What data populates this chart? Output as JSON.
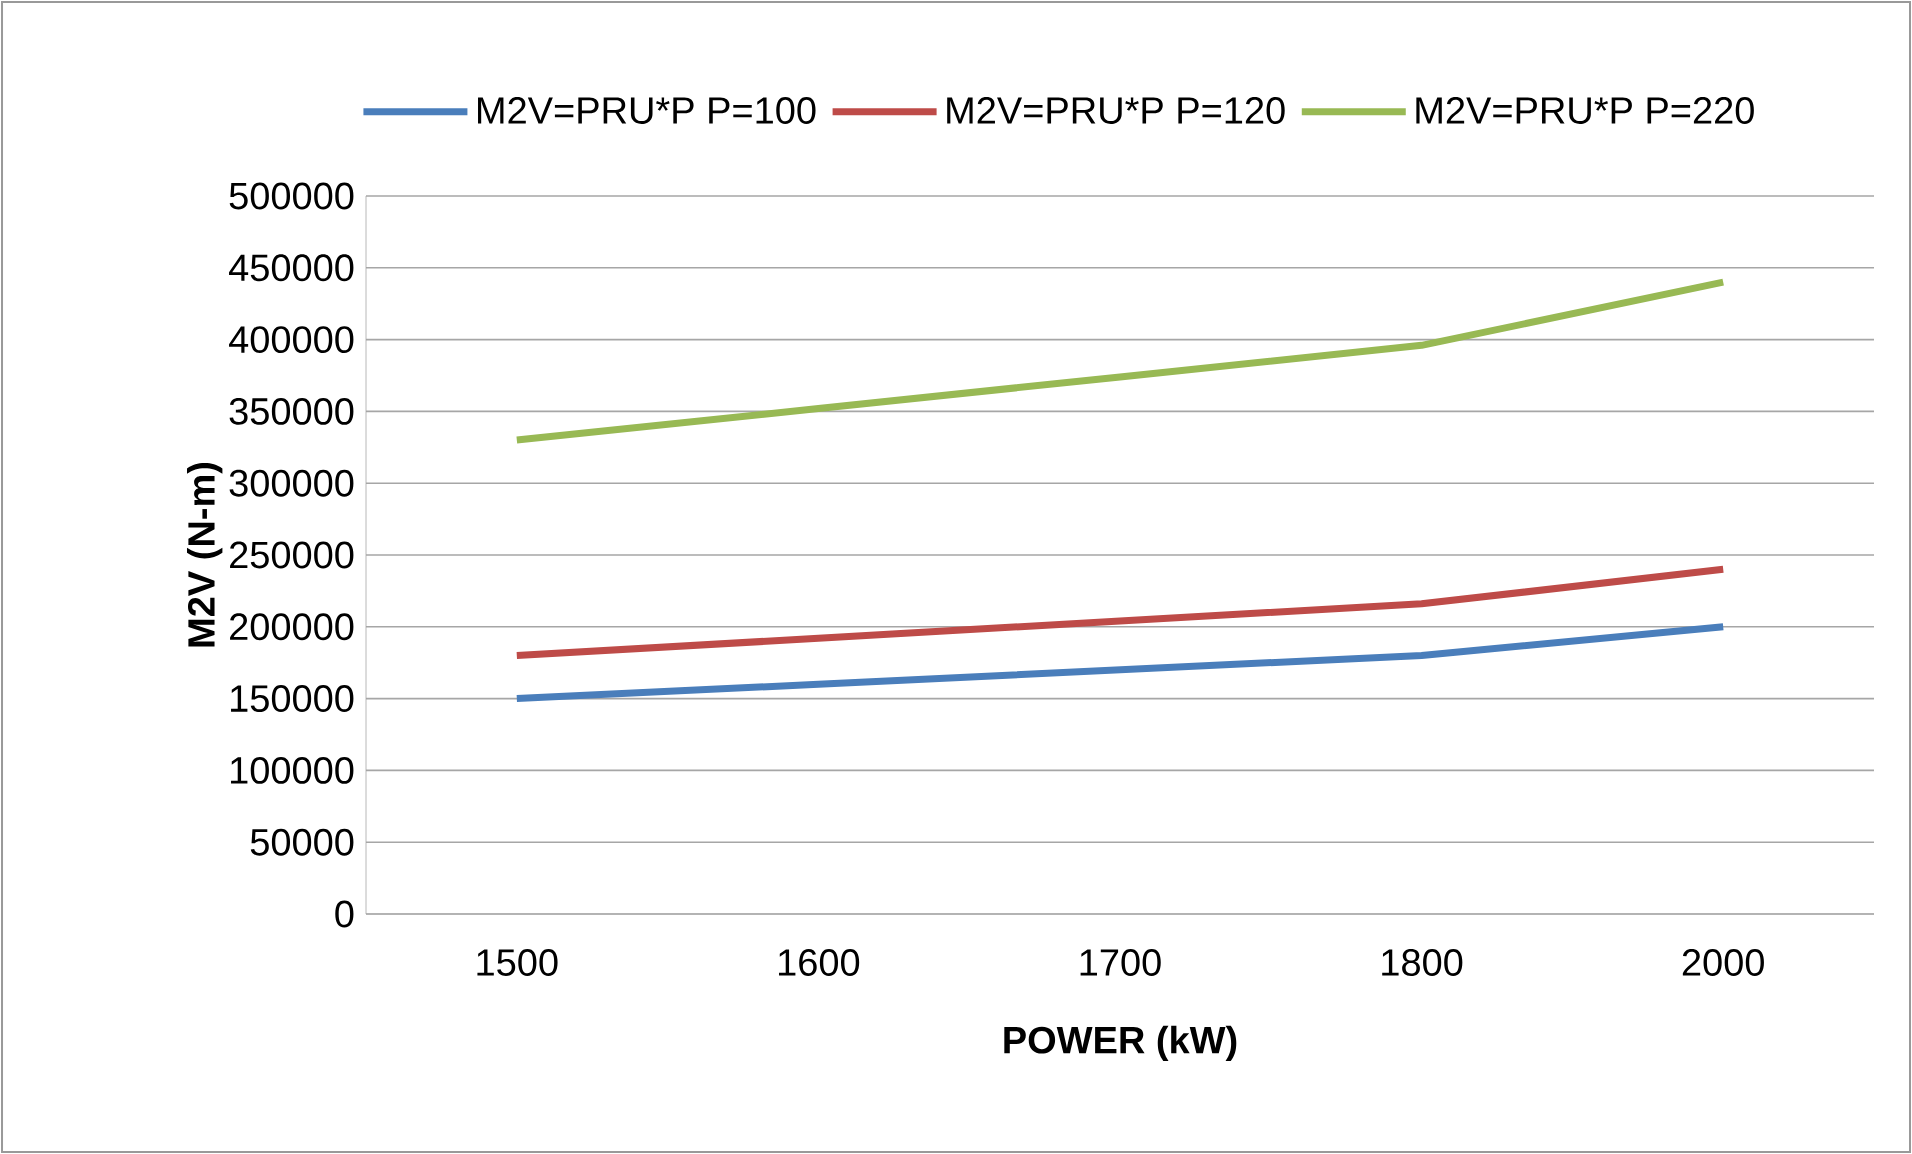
{
  "chart_data": {
    "type": "line",
    "xlabel": "POWER (kW)",
    "ylabel": "M2V (N-m)",
    "categories": [
      "1500",
      "1600",
      "1700",
      "1800",
      "2000"
    ],
    "series": [
      {
        "name": "M2V=PRU*P P=100",
        "color": "#4a7ebb",
        "values": [
          150000,
          160000,
          170000,
          180000,
          200000
        ]
      },
      {
        "name": "M2V=PRU*P P=120",
        "color": "#be4b48",
        "values": [
          180000,
          192000,
          204000,
          216000,
          240000
        ]
      },
      {
        "name": "M2V=PRU*P P=220",
        "color": "#98b954",
        "values": [
          330000,
          352000,
          374000,
          396000,
          440000
        ]
      }
    ],
    "ylim": [
      0,
      500000
    ],
    "yticks": [
      0,
      50000,
      100000,
      150000,
      200000,
      250000,
      300000,
      350000,
      400000,
      450000,
      500000
    ],
    "grid": "y",
    "legend": "top",
    "marker": "none",
    "line_style": "solid"
  }
}
